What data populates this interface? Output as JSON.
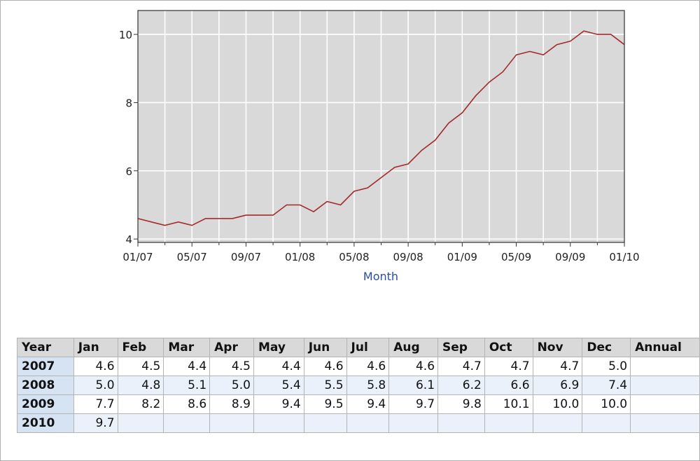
{
  "chart_data": {
    "type": "line",
    "title": "",
    "xlabel": "Month",
    "ylabel": "",
    "ylim": [
      3.9,
      10.7
    ],
    "yticks": [
      "4",
      "6",
      "8",
      "10"
    ],
    "xtick_labels": [
      "01/07",
      "05/07",
      "09/07",
      "01/08",
      "05/08",
      "09/08",
      "01/09",
      "05/09",
      "09/09",
      "01/10"
    ],
    "grid": true,
    "series_color": "#a52a2a",
    "plot_bg": "#d9d9d9",
    "series": [
      {
        "x": [
          "01/07",
          "02/07",
          "03/07",
          "04/07",
          "05/07",
          "06/07",
          "07/07",
          "08/07",
          "09/07",
          "10/07",
          "11/07",
          "12/07",
          "01/08",
          "02/08",
          "03/08",
          "04/08",
          "05/08",
          "06/08",
          "07/08",
          "08/08",
          "09/08",
          "10/08",
          "11/08",
          "12/08",
          "01/09",
          "02/09",
          "03/09",
          "04/09",
          "05/09",
          "06/09",
          "07/09",
          "08/09",
          "09/09",
          "10/09",
          "11/09",
          "12/09",
          "01/10"
        ],
        "values": [
          4.6,
          4.5,
          4.4,
          4.5,
          4.4,
          4.6,
          4.6,
          4.6,
          4.7,
          4.7,
          4.7,
          5.0,
          5.0,
          4.8,
          5.1,
          5.0,
          5.4,
          5.5,
          5.8,
          6.1,
          6.2,
          6.6,
          6.9,
          7.4,
          7.7,
          8.2,
          8.6,
          8.9,
          9.4,
          9.5,
          9.4,
          9.7,
          9.8,
          10.1,
          10.0,
          10.0,
          9.7
        ]
      }
    ]
  },
  "table": {
    "headers": [
      "Year",
      "Jan",
      "Feb",
      "Mar",
      "Apr",
      "May",
      "Jun",
      "Jul",
      "Aug",
      "Sep",
      "Oct",
      "Nov",
      "Dec",
      "Annual"
    ],
    "rows": [
      {
        "year": "2007",
        "cells": [
          "4.6",
          "4.5",
          "4.4",
          "4.5",
          "4.4",
          "4.6",
          "4.6",
          "4.6",
          "4.7",
          "4.7",
          "4.7",
          "5.0",
          ""
        ]
      },
      {
        "year": "2008",
        "cells": [
          "5.0",
          "4.8",
          "5.1",
          "5.0",
          "5.4",
          "5.5",
          "5.8",
          "6.1",
          "6.2",
          "6.6",
          "6.9",
          "7.4",
          ""
        ]
      },
      {
        "year": "2009",
        "cells": [
          "7.7",
          "8.2",
          "8.6",
          "8.9",
          "9.4",
          "9.5",
          "9.4",
          "9.7",
          "9.8",
          "10.1",
          "10.0",
          "10.0",
          ""
        ]
      },
      {
        "year": "2010",
        "cells": [
          "9.7",
          "",
          "",
          "",
          "",
          "",
          "",
          "",
          "",
          "",
          "",
          "",
          ""
        ]
      }
    ]
  }
}
